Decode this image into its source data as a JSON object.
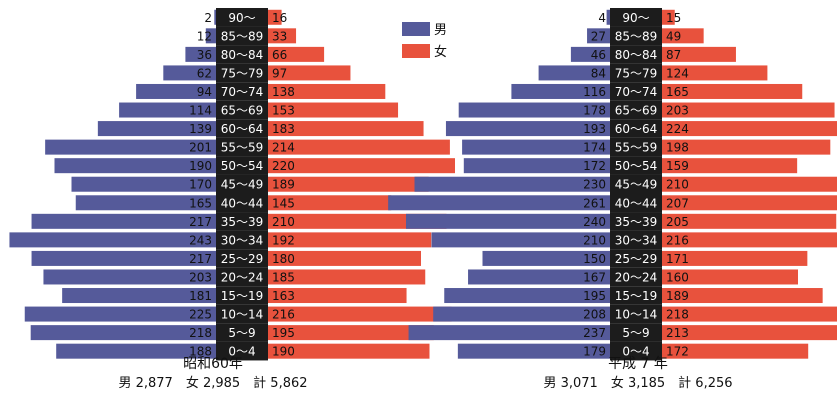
{
  "legend": {
    "male_label": "男",
    "female_label": "女"
  },
  "colors": {
    "male": "#555a9a",
    "female": "#e8523d",
    "age_box": "#1c1c1c",
    "age_text": "#ffffff"
  },
  "chart_data": [
    {
      "type": "bar",
      "subtype": "population-pyramid",
      "title": "昭和60年",
      "totals_text": "男 2,877　女 2,985　計 5,862",
      "categories": [
        "90〜",
        "85〜89",
        "80〜84",
        "75〜79",
        "70〜74",
        "65〜69",
        "60〜64",
        "55〜59",
        "50〜54",
        "45〜49",
        "40〜44",
        "35〜39",
        "30〜34",
        "25〜29",
        "20〜24",
        "15〜19",
        "10〜14",
        "5〜9",
        "0〜4"
      ],
      "series": [
        {
          "name": "男",
          "values": [
            2,
            12,
            36,
            62,
            94,
            114,
            139,
            201,
            190,
            170,
            165,
            217,
            243,
            217,
            203,
            181,
            225,
            218,
            188
          ]
        },
        {
          "name": "女",
          "values": [
            16,
            33,
            66,
            97,
            138,
            153,
            183,
            214,
            220,
            189,
            145,
            210,
            192,
            180,
            185,
            163,
            216,
            195,
            190
          ]
        }
      ]
    },
    {
      "type": "bar",
      "subtype": "population-pyramid",
      "title": "平成 7 年",
      "totals_text": "男 3,071　女 3,185　計 6,256",
      "categories": [
        "90〜",
        "85〜89",
        "80〜84",
        "75〜79",
        "70〜74",
        "65〜69",
        "60〜64",
        "55〜59",
        "50〜54",
        "45〜49",
        "40〜44",
        "35〜39",
        "30〜34",
        "25〜29",
        "20〜24",
        "15〜19",
        "10〜14",
        "5〜9",
        "0〜4"
      ],
      "series": [
        {
          "name": "男",
          "values": [
            4,
            27,
            46,
            84,
            116,
            178,
            193,
            174,
            172,
            230,
            261,
            240,
            210,
            150,
            167,
            195,
            208,
            237,
            179
          ]
        },
        {
          "name": "女",
          "values": [
            15,
            49,
            87,
            124,
            165,
            203,
            224,
            198,
            159,
            210,
            207,
            205,
            216,
            171,
            160,
            189,
            218,
            213,
            172
          ]
        }
      ]
    }
  ]
}
